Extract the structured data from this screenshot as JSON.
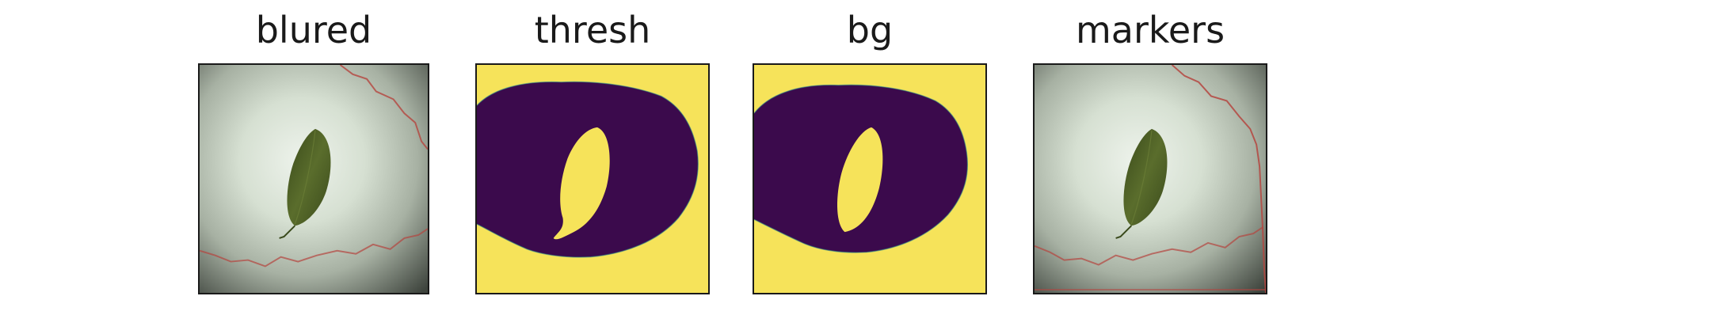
{
  "panels": [
    {
      "title": "blured"
    },
    {
      "title": "thresh"
    },
    {
      "title": "bg"
    },
    {
      "title": "markers"
    }
  ],
  "colors": {
    "mask_foreground": "#3b0a4c",
    "mask_background": "#f6e35a",
    "contour_line": "#b5453f",
    "leaf": "#4b5b24",
    "light_background": "#dfe8db",
    "dark_vignette": "#3e443d"
  }
}
